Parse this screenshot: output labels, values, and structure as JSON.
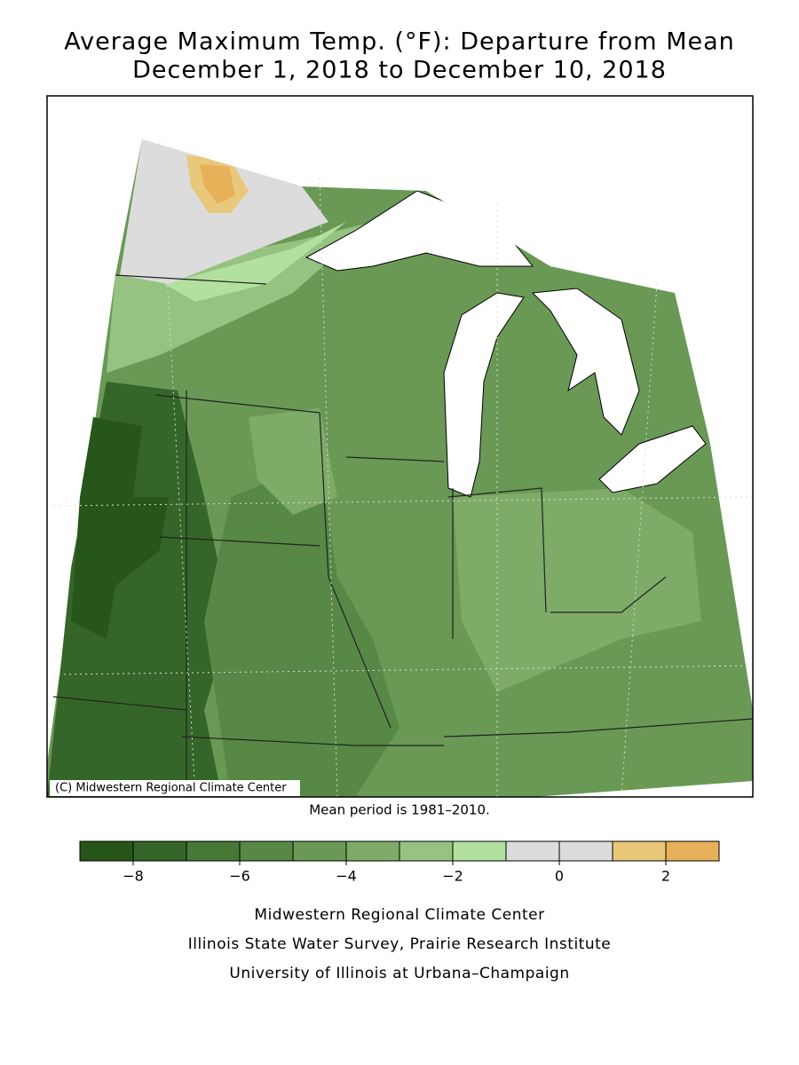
{
  "title": [
    "Average Maximum Temp. (°F): Departure from Mean",
    "December 1, 2018 to December 10, 2018"
  ],
  "map": {
    "credit": "(C) Midwestern Regional Climate Center"
  },
  "note": "Mean period is 1981–2010.",
  "legend": {
    "bins": [
      -9,
      -8,
      -7,
      -6,
      -5,
      -4,
      -3,
      -2,
      -1,
      0,
      1,
      2,
      3
    ],
    "colors": [
      "#27561a",
      "#356629",
      "#467836",
      "#578845",
      "#699955",
      "#7eab68",
      "#96c382",
      "#b2e19f",
      "#dcdcdc",
      "#dcdcdc",
      "#e9c87b",
      "#e6b159"
    ],
    "ticks": [
      {
        "value": -8,
        "label": "−8"
      },
      {
        "value": -6,
        "label": "−6"
      },
      {
        "value": -4,
        "label": "−4"
      },
      {
        "value": -2,
        "label": "−2"
      },
      0,
      2
    ]
  },
  "footer": [
    "Midwestern Regional Climate Center",
    "Illinois State Water Survey, Prairie Research Institute",
    "University of Illinois at Urbana–Champaign"
  ]
}
